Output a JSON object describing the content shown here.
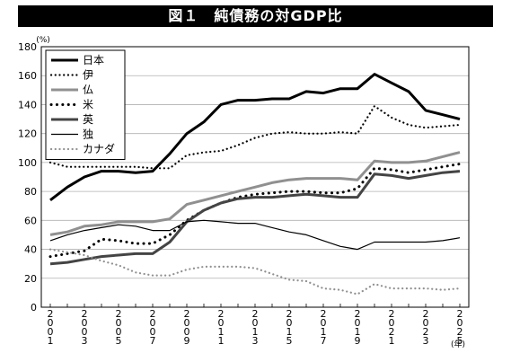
{
  "chart_data": {
    "type": "line",
    "title": "図１　純債務の対GDP比",
    "y_unit": "(%)",
    "x_unit": "(年)",
    "ylim": [
      0,
      180
    ],
    "yticks": [
      0,
      20,
      40,
      60,
      80,
      100,
      120,
      140,
      160,
      180
    ],
    "x_tick_labels": [
      "2001",
      "2003",
      "2005",
      "2007",
      "2009",
      "2011",
      "2013",
      "2015",
      "2017",
      "2019",
      "2021",
      "2023",
      "2025"
    ],
    "x": [
      2001,
      2002,
      2003,
      2004,
      2005,
      2006,
      2007,
      2008,
      2009,
      2010,
      2011,
      2012,
      2013,
      2014,
      2015,
      2016,
      2017,
      2018,
      2019,
      2020,
      2021,
      2022,
      2023,
      2024,
      2025
    ],
    "grid": true,
    "legend_position": "top-left",
    "series": [
      {
        "name": "日本",
        "color": "#000000",
        "dash": "solid",
        "width": 3,
        "values": [
          74,
          83,
          90,
          94,
          94,
          93,
          94,
          106,
          120,
          128,
          140,
          143,
          143,
          144,
          144,
          149,
          148,
          151,
          151,
          161,
          155,
          149,
          136,
          133,
          130
        ]
      },
      {
        "name": "伊",
        "color": "#000000",
        "dash": "dotted",
        "width": 2.2,
        "values": [
          100,
          97,
          97,
          97,
          97,
          97,
          96,
          96,
          105,
          107,
          108,
          112,
          117,
          120,
          121,
          120,
          120,
          121,
          120,
          139,
          131,
          126,
          124,
          125,
          126
        ]
      },
      {
        "name": "仏",
        "color": "#909090",
        "dash": "solid",
        "width": 3,
        "values": [
          50,
          52,
          56,
          57,
          59,
          59,
          59,
          61,
          71,
          74,
          77,
          80,
          83,
          86,
          88,
          89,
          89,
          89,
          88,
          101,
          100,
          100,
          101,
          104,
          107
        ]
      },
      {
        "name": "米",
        "color": "#000000",
        "dash": "dotted",
        "width": 3,
        "values": [
          35,
          37,
          39,
          47,
          46,
          44,
          44,
          50,
          60,
          67,
          72,
          76,
          78,
          79,
          80,
          80,
          79,
          79,
          82,
          96,
          95,
          93,
          95,
          97,
          99
        ]
      },
      {
        "name": "英",
        "color": "#444444",
        "dash": "solid",
        "width": 3,
        "values": [
          30,
          31,
          33,
          35,
          36,
          37,
          37,
          45,
          59,
          67,
          72,
          75,
          76,
          76,
          77,
          78,
          77,
          76,
          76,
          92,
          91,
          89,
          91,
          93,
          94
        ]
      },
      {
        "name": "独",
        "color": "#000000",
        "dash": "solid",
        "width": 1.2,
        "values": [
          46,
          50,
          53,
          55,
          57,
          56,
          53,
          53,
          59,
          60,
          59,
          58,
          58,
          55,
          52,
          50,
          46,
          42,
          40,
          45,
          45,
          45,
          45,
          46,
          48
        ]
      },
      {
        "name": "カナダ",
        "color": "#909090",
        "dash": "dotted",
        "width": 2.2,
        "values": [
          40,
          38,
          36,
          32,
          29,
          24,
          22,
          22,
          26,
          28,
          28,
          28,
          27,
          23,
          19,
          18,
          13,
          12,
          9,
          16,
          13,
          13,
          13,
          12,
          13
        ]
      }
    ]
  }
}
